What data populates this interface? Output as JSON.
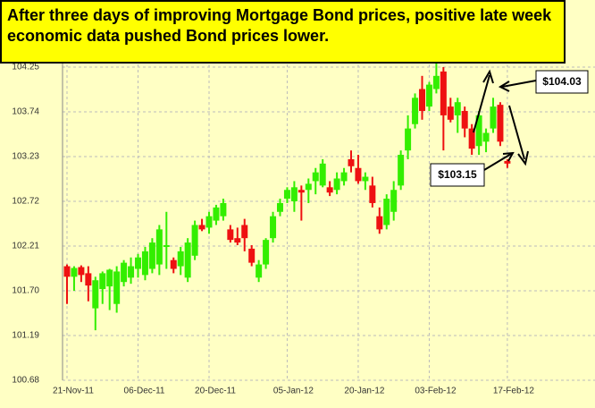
{
  "chart_data": {
    "type": "candlestick",
    "title": "After three days of improving Mortgage Bond prices, positive late week economic data pushed Bond prices lower.",
    "categories": [
      "21-Nov-11",
      null,
      null,
      null,
      null,
      null,
      null,
      null,
      null,
      null,
      "06-Dec-11",
      null,
      null,
      null,
      null,
      null,
      null,
      null,
      null,
      null,
      "20-Dec-11",
      null,
      null,
      null,
      null,
      null,
      null,
      null,
      null,
      null,
      null,
      "05-Jan-12",
      null,
      null,
      null,
      null,
      null,
      null,
      null,
      null,
      null,
      "20-Jan-12",
      null,
      null,
      null,
      null,
      null,
      null,
      null,
      null,
      null,
      "03-Feb-12",
      null,
      null,
      null,
      null,
      null,
      null,
      null,
      null,
      null,
      null,
      "17-Feb-12"
    ],
    "open": [
      101.98,
      101.86,
      101.97,
      101.9,
      101.5,
      101.72,
      101.75,
      101.55,
      101.8,
      101.85,
      101.95,
      101.88,
      101.95,
      102.0,
      102.2,
      102.05,
      101.98,
      101.85,
      102.1,
      102.45,
      102.42,
      102.5,
      102.55,
      102.4,
      102.3,
      102.45,
      102.18,
      101.85,
      102.0,
      102.3,
      102.6,
      102.75,
      102.72,
      102.85,
      102.85,
      102.95,
      102.9,
      102.88,
      102.85,
      102.95,
      103.2,
      103.1,
      102.95,
      102.9,
      102.55,
      102.45,
      102.6,
      102.9,
      103.3,
      103.6,
      104.0,
      103.8,
      104.0,
      104.2,
      103.8,
      103.7,
      103.75,
      103.55,
      103.35,
      103.4,
      103.55,
      103.82,
      103.18
    ],
    "high": [
      102.0,
      101.98,
      101.99,
      101.98,
      101.86,
      101.92,
      101.95,
      101.98,
      102.05,
      102.08,
      102.12,
      102.2,
      102.3,
      102.45,
      102.6,
      102.08,
      102.2,
      102.3,
      102.5,
      102.52,
      102.6,
      102.68,
      102.75,
      102.45,
      102.42,
      102.52,
      102.22,
      102.05,
      102.3,
      102.6,
      102.75,
      102.88,
      102.95,
      102.9,
      102.98,
      103.1,
      103.2,
      102.95,
      103.05,
      103.1,
      103.3,
      103.25,
      103.05,
      103.0,
      102.65,
      102.8,
      102.95,
      103.3,
      103.7,
      103.95,
      104.15,
      104.08,
      104.3,
      104.25,
      103.9,
      103.9,
      103.8,
      103.6,
      103.75,
      103.55,
      103.9,
      103.85,
      103.2
    ],
    "low": [
      101.55,
      101.7,
      101.8,
      101.58,
      101.25,
      101.55,
      101.48,
      101.45,
      101.75,
      101.78,
      101.85,
      101.82,
      101.9,
      101.88,
      101.95,
      101.9,
      101.88,
      101.8,
      102.05,
      102.38,
      102.35,
      102.45,
      102.5,
      102.25,
      102.22,
      102.15,
      101.98,
      101.8,
      101.95,
      102.25,
      102.55,
      102.7,
      102.6,
      102.5,
      102.7,
      102.8,
      102.88,
      102.78,
      102.8,
      102.9,
      103.05,
      102.92,
      102.85,
      102.65,
      102.35,
      102.4,
      102.5,
      102.85,
      103.2,
      103.55,
      103.65,
      103.75,
      103.95,
      103.3,
      103.62,
      103.5,
      103.45,
      103.25,
      103.25,
      103.28,
      103.5,
      103.35,
      103.1
    ],
    "close": [
      101.86,
      101.96,
      101.88,
      101.76,
      101.82,
      101.9,
      101.94,
      101.92,
      102.02,
      101.98,
      102.08,
      102.15,
      102.25,
      102.4,
      102.22,
      101.95,
      102.15,
      102.25,
      102.45,
      102.4,
      102.55,
      102.65,
      102.7,
      102.28,
      102.25,
      102.3,
      102.02,
      102.0,
      102.28,
      102.55,
      102.7,
      102.85,
      102.88,
      102.82,
      102.92,
      103.05,
      103.15,
      102.82,
      102.98,
      103.05,
      103.12,
      102.95,
      103.0,
      102.7,
      102.4,
      102.75,
      102.85,
      103.25,
      103.55,
      103.9,
      103.75,
      104.05,
      104.15,
      103.7,
      103.65,
      103.85,
      103.55,
      103.32,
      103.7,
      103.5,
      103.8,
      103.4,
      103.15
    ],
    "up_color": "#33ee00",
    "down_color": "#ee1111",
    "ylim": [
      100.68,
      104.25
    ],
    "yticks": [
      100.68,
      101.19,
      {
        "value": 101.7,
        "label": "101.70"
      },
      102.21,
      102.72,
      103.23,
      103.74,
      104.25
    ],
    "grid": true,
    "annotations": [
      "$104.03",
      "$103.15"
    ]
  }
}
